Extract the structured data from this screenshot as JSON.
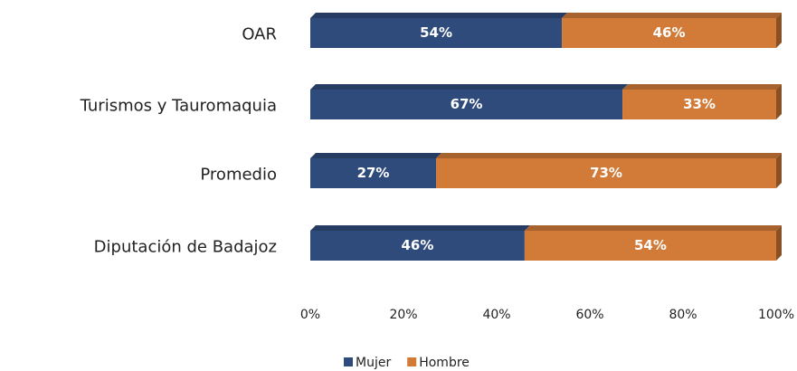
{
  "chart_data": {
    "type": "bar",
    "orientation": "horizontal",
    "stacked": true,
    "categories": [
      "OAR",
      "Turismos y Tauromaquia",
      "Promedio",
      "Diputación de Badajoz"
    ],
    "series": [
      {
        "name": "Mujer",
        "color": "#2f4b7c",
        "values": [
          54,
          67,
          27,
          46
        ],
        "value_labels": [
          "54%",
          "67%",
          "27%",
          "46%"
        ]
      },
      {
        "name": "Hombre",
        "color": "#d27b38",
        "values": [
          46,
          33,
          73,
          54
        ],
        "value_labels": [
          "46%",
          "33%",
          "73%",
          "54%"
        ]
      }
    ],
    "xlim": [
      0,
      100
    ],
    "xticks": [
      {
        "value": 0,
        "label": "0%"
      },
      {
        "value": 20,
        "label": "20%"
      },
      {
        "value": 40,
        "label": "40%"
      },
      {
        "value": 60,
        "label": "60%"
      },
      {
        "value": 80,
        "label": "80%"
      },
      {
        "value": 100,
        "label": "100%"
      }
    ],
    "legend": "bottom"
  }
}
